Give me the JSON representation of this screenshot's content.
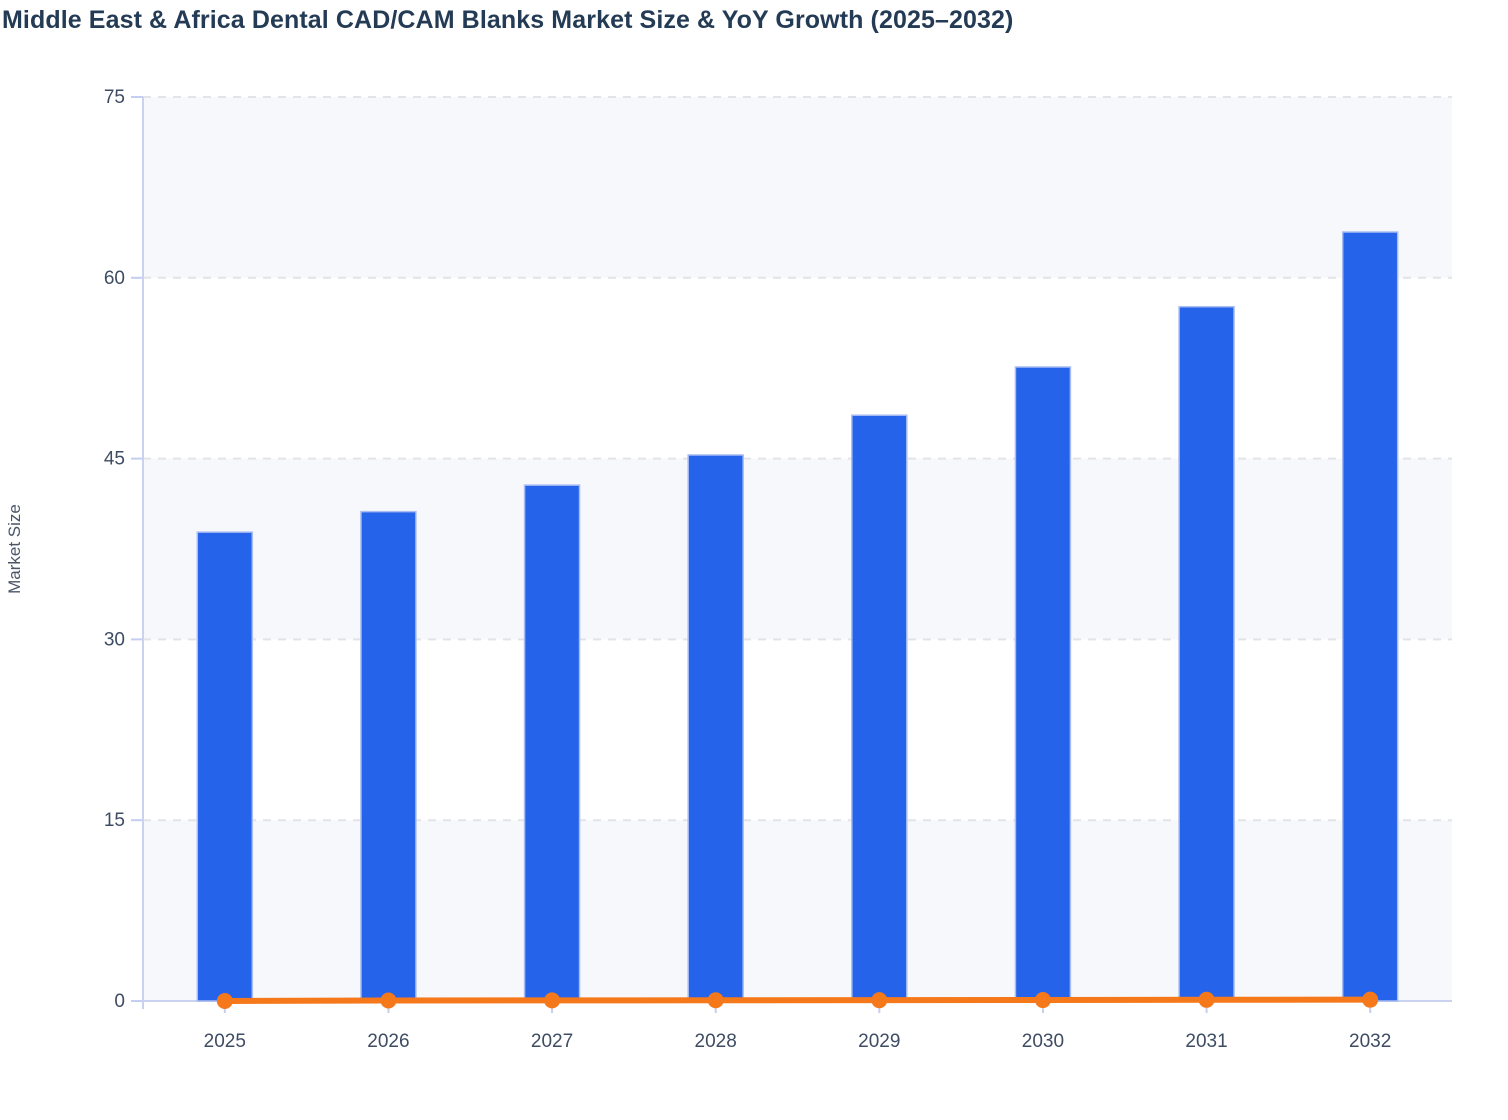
{
  "chart_data": {
    "type": "bar",
    "title": "Middle East & Africa Dental CAD/CAM Blanks Market Size & YoY Growth (2025–2032)",
    "xlabel": "",
    "ylabel": "Market Size",
    "categories": [
      "2025",
      "2026",
      "2027",
      "2028",
      "2029",
      "2030",
      "2031",
      "2032"
    ],
    "series": [
      {
        "name": "Market Size",
        "type": "bar",
        "values": [
          38.9,
          40.6,
          42.8,
          45.3,
          48.6,
          52.6,
          57.6,
          63.8
        ],
        "color": "#2563eb",
        "border_color": "#a9bdf2"
      },
      {
        "name": "YoY Growth",
        "type": "line",
        "values": [
          0,
          0.04,
          0.05,
          0.06,
          0.07,
          0.08,
          0.1,
          0.11
        ],
        "color": "#f5791b",
        "marker": "circle"
      }
    ],
    "ylim": [
      0,
      75
    ],
    "yticks": [
      0,
      15,
      30,
      45,
      60,
      75
    ],
    "grid": "horizontal-dashed",
    "legend_position": "none",
    "plot_background": "alternating-bands",
    "colors": {
      "title": "#243b55",
      "tick_label": "#3e4c63",
      "axis_title": "#4a5568",
      "axis_line": "#c9d2f0",
      "tick_mark": "#c5cdf0",
      "gridline": "#e2e4e9",
      "band_fill": "#f7f8fb",
      "background": "#ffffff"
    }
  }
}
